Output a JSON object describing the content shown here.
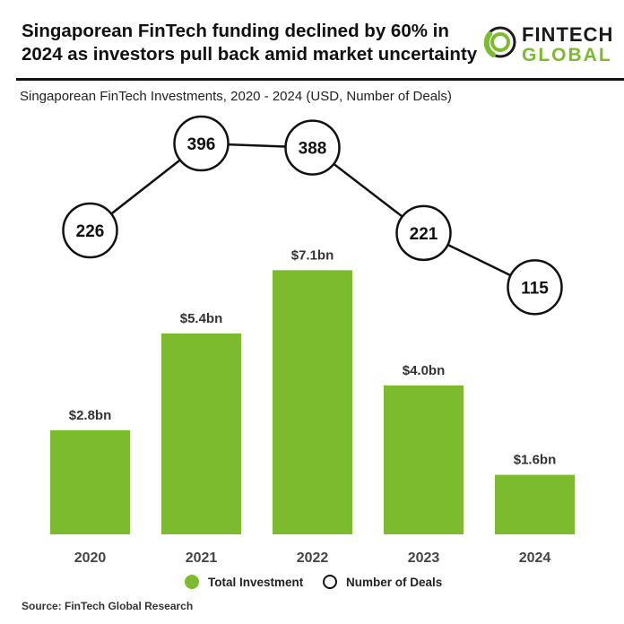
{
  "header": {
    "title_line1": "Singaporean FinTech funding declined by 60% in",
    "title_line2": "2024 as investors pull back amid market uncertainty",
    "logo_line1": "FINTECH",
    "logo_line2": "GLOBAL"
  },
  "subtitle": "Singaporean FinTech Investments, 2020 - 2024 (USD, Number of Deals)",
  "chart_data": {
    "type": "bar",
    "categories": [
      "2020",
      "2021",
      "2022",
      "2023",
      "2024"
    ],
    "series": [
      {
        "name": "Total Investment",
        "type": "bar",
        "values": [
          2.8,
          5.4,
          7.1,
          4.0,
          1.6
        ],
        "labels": [
          "$2.8bn",
          "$5.4bn",
          "$7.1bn",
          "$4.0bn",
          "$1.6bn"
        ],
        "color": "#7dbb2e"
      },
      {
        "name": "Number of Deals",
        "type": "line",
        "values": [
          226,
          396,
          388,
          221,
          115
        ],
        "labels": [
          "226",
          "396",
          "388",
          "221",
          "115"
        ],
        "color": "#111111"
      }
    ],
    "grid": false,
    "legend_position": "bottom"
  },
  "legend": {
    "investment_label": "Total Investment",
    "deals_label": "Number of Deals"
  },
  "source": "Source: FinTech Global Research",
  "colors": {
    "accent": "#7dbb2e",
    "text": "#111111"
  }
}
